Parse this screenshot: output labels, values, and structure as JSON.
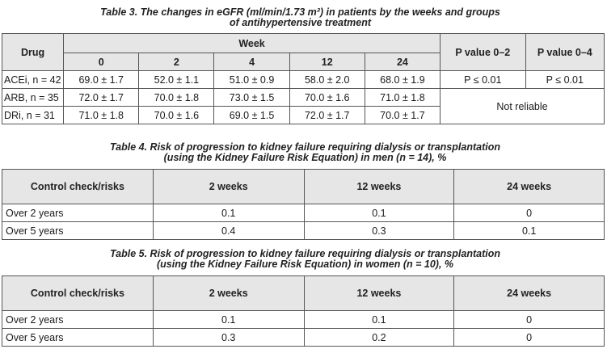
{
  "table3": {
    "caption_line1": "Table 3. The changes in eGFR (ml/min/1.73 m²) in patients by the weeks and groups",
    "caption_line2": "of antihypertensive treatment",
    "header": {
      "drug": "Drug",
      "week": "Week",
      "weeks": [
        "0",
        "2",
        "4",
        "12",
        "24"
      ],
      "p_0_2": "P value 0–2",
      "p_0_4": "P value 0–4"
    },
    "rows": [
      {
        "drug": "ACEi, n = 42",
        "values": [
          "69.0 ± 1.7",
          "52.0 ± 1.1",
          "51.0 ± 0.9",
          "58.0 ± 2.0",
          "68.0 ± 1.9"
        ],
        "p_0_2": "P ≤ 0.01",
        "p_0_4": "P ≤ 0.01"
      },
      {
        "drug": "ARB, n = 35",
        "values": [
          "72.0 ± 1.7",
          "70.0 ± 1.8",
          "73.0 ± 1.5",
          "70.0 ± 1.6",
          "71.0 ± 1.8"
        ]
      },
      {
        "drug": "DRi, n = 31",
        "values": [
          "71.0 ± 1.8",
          "70.0 ± 1.6",
          "69.0 ± 1.5",
          "72.0 ± 1.7",
          "70.0 ± 1.7"
        ]
      }
    ],
    "not_reliable": "Not reliable"
  },
  "table4": {
    "caption_line1": "Table 4. Risk of progression to kidney failure requiring dialysis or transplantation",
    "caption_line2": "(using the Kidney Failure Risk Equation) in men (n = 14), %",
    "header": {
      "label": "Control check/risks",
      "w2": "2 weeks",
      "w12": "12 weeks",
      "w24": "24 weeks"
    },
    "rows": [
      {
        "label": "Over 2 years",
        "values": [
          "0.1",
          "0.1",
          "0"
        ]
      },
      {
        "label": "Over 5 years",
        "values": [
          "0.4",
          "0.3",
          "0.1"
        ]
      }
    ]
  },
  "table5": {
    "caption_line1": "Table 5. Risk of progression to kidney failure requiring dialysis or transplantation",
    "caption_line2": "(using the Kidney Failure Risk Equation) in women (n = 10), %",
    "header": {
      "label": "Control check/risks",
      "w2": "2 weeks",
      "w12": "12 weeks",
      "w24": "24 weeks"
    },
    "rows": [
      {
        "label": "Over 2 years",
        "values": [
          "0.1",
          "0.1",
          "0"
        ]
      },
      {
        "label": "Over 5 years",
        "values": [
          "0.3",
          "0.2",
          "0"
        ]
      }
    ]
  }
}
